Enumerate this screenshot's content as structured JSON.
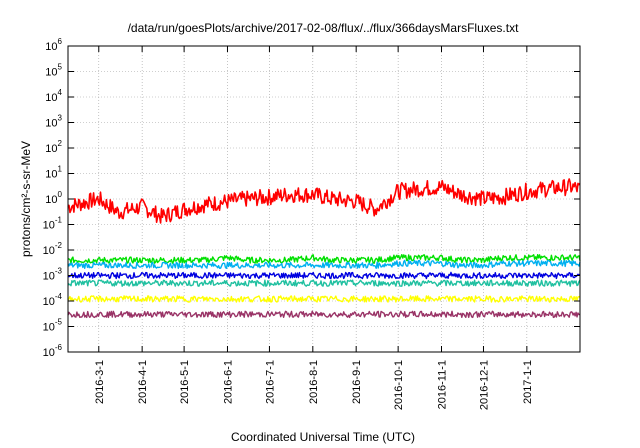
{
  "chart_data": {
    "type": "line",
    "title": "/data/run/goesPlots/archive/2017-02-08/flux/../flux/366daysMarsFluxes.txt",
    "xlabel": "Coordinated Universal Time (UTC)",
    "ylabel": "protons/cm²-s-sr-MeV",
    "yscale": "log",
    "ylim": [
      1e-06,
      1000000.0
    ],
    "xlim": [
      "2016-02-08",
      "2017-02-08"
    ],
    "grid": true,
    "legend": "none",
    "x_ticks": [
      "2016-3-1",
      "2016-4-1",
      "2016-5-1",
      "2016-6-1",
      "2016-7-1",
      "2016-8-1",
      "2016-9-1",
      "2016-10-1",
      "2016-11-1",
      "2016-12-1",
      "2017-1-1"
    ],
    "y_ticks": [
      {
        "base": "10",
        "exp": "-6"
      },
      {
        "base": "10",
        "exp": "-5"
      },
      {
        "base": "10",
        "exp": "-4"
      },
      {
        "base": "10",
        "exp": "-3"
      },
      {
        "base": "10",
        "exp": "-2"
      },
      {
        "base": "10",
        "exp": "-1"
      },
      {
        "base": "10",
        "exp": "0"
      },
      {
        "base": "10",
        "exp": "1"
      },
      {
        "base": "10",
        "exp": "2"
      },
      {
        "base": "10",
        "exp": "3"
      },
      {
        "base": "10",
        "exp": "4"
      },
      {
        "base": "10",
        "exp": "5"
      },
      {
        "base": "10",
        "exp": "6"
      }
    ],
    "x": [
      "2016-02-08",
      "2016-03-01",
      "2016-03-15",
      "2016-04-01",
      "2016-04-15",
      "2016-05-01",
      "2016-05-15",
      "2016-06-01",
      "2016-06-15",
      "2016-07-01",
      "2016-07-15",
      "2016-08-01",
      "2016-08-15",
      "2016-09-01",
      "2016-09-15",
      "2016-10-01",
      "2016-10-15",
      "2016-11-01",
      "2016-11-15",
      "2016-12-01",
      "2016-12-15",
      "2017-01-01",
      "2017-01-15",
      "2017-02-01",
      "2017-02-08"
    ],
    "series": [
      {
        "color": "#ff0000",
        "values": [
          0.5,
          1.0,
          0.3,
          0.5,
          0.2,
          0.4,
          0.6,
          0.8,
          1.0,
          1.2,
          1.5,
          1.5,
          1.0,
          0.8,
          0.4,
          2.0,
          2.5,
          3.0,
          1.5,
          1.0,
          1.2,
          2.0,
          2.5,
          3.0,
          2.5
        ]
      },
      {
        "color": "#00e000",
        "values": [
          0.004,
          0.004,
          0.004,
          0.004,
          0.004,
          0.004,
          0.004,
          0.005,
          0.004,
          0.004,
          0.004,
          0.005,
          0.004,
          0.004,
          0.004,
          0.005,
          0.005,
          0.005,
          0.004,
          0.004,
          0.005,
          0.005,
          0.005,
          0.005,
          0.005
        ]
      },
      {
        "color": "#00b0f0",
        "values": [
          0.0025,
          0.0025,
          0.0025,
          0.0025,
          0.0025,
          0.0025,
          0.0025,
          0.0025,
          0.0025,
          0.0025,
          0.0025,
          0.0025,
          0.0025,
          0.0025,
          0.0025,
          0.003,
          0.003,
          0.003,
          0.0025,
          0.0025,
          0.003,
          0.003,
          0.003,
          0.003,
          0.003
        ]
      },
      {
        "color": "#ffffff",
        "values": [
          0.0015,
          0.0015,
          0.0015,
          0.0015,
          0.0015,
          0.0015,
          0.0015,
          0.0015,
          0.0015,
          0.0015,
          0.0015,
          0.0015,
          0.0015,
          0.0015,
          0.0015,
          0.0015,
          0.0015,
          0.0015,
          0.0015,
          0.0015,
          0.0015,
          0.0015,
          0.0015,
          0.0015,
          0.0015
        ]
      },
      {
        "color": "#0000e0",
        "values": [
          0.001,
          0.001,
          0.001,
          0.001,
          0.001,
          0.001,
          0.001,
          0.001,
          0.001,
          0.001,
          0.001,
          0.001,
          0.001,
          0.001,
          0.001,
          0.001,
          0.001,
          0.001,
          0.001,
          0.001,
          0.001,
          0.001,
          0.001,
          0.001,
          0.001
        ]
      },
      {
        "color": "#20c0a0",
        "values": [
          0.0005,
          0.0005,
          0.0005,
          0.0005,
          0.0005,
          0.0005,
          0.0005,
          0.0005,
          0.0005,
          0.0005,
          0.0005,
          0.0005,
          0.0005,
          0.0005,
          0.0005,
          0.0005,
          0.0005,
          0.0005,
          0.0005,
          0.0005,
          0.0005,
          0.0005,
          0.0005,
          0.0005,
          0.0005
        ]
      },
      {
        "color": "#ffff00",
        "values": [
          0.00012,
          0.00012,
          0.00012,
          0.00012,
          0.00012,
          0.00012,
          0.00012,
          0.00012,
          0.00012,
          0.00012,
          0.00012,
          0.00012,
          0.00012,
          0.00012,
          0.00012,
          0.00012,
          0.00012,
          0.00012,
          0.00012,
          0.00012,
          0.00012,
          0.00012,
          0.00012,
          0.00012,
          0.00012
        ]
      },
      {
        "color": "#993366",
        "values": [
          3e-05,
          3e-05,
          3e-05,
          3e-05,
          3e-05,
          3e-05,
          3e-05,
          3e-05,
          3e-05,
          3e-05,
          3e-05,
          3e-05,
          3e-05,
          3e-05,
          3e-05,
          3e-05,
          3e-05,
          3e-05,
          3e-05,
          3e-05,
          3e-05,
          3e-05,
          3e-05,
          3e-05,
          3e-05
        ]
      }
    ]
  }
}
